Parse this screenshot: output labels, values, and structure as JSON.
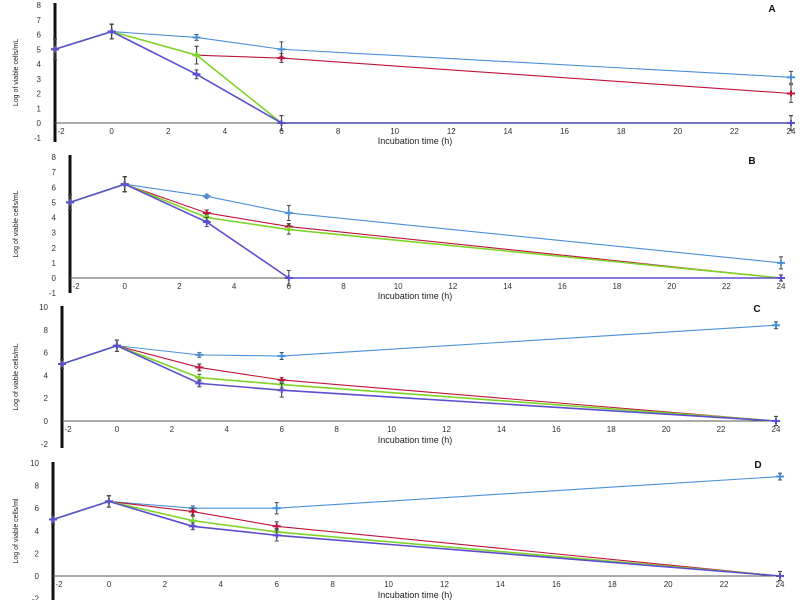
{
  "figure": {
    "series_colors": {
      "blue": "#4a90d9",
      "red": "#c0143c",
      "green": "#7fd42a",
      "purple": "#5b4fd0"
    }
  },
  "chart_data": [
    {
      "type": "line",
      "panel_label": "A",
      "xlabel": "Incubation time (h)",
      "ylabel": "Log of viable cells/mL",
      "xlim": [
        -2,
        24
      ],
      "ylim": [
        -1,
        8
      ],
      "xticks": [
        -2,
        0,
        2,
        4,
        6,
        8,
        10,
        12,
        14,
        16,
        18,
        20,
        22,
        24
      ],
      "yticks": [
        -1,
        0,
        1,
        2,
        3,
        4,
        5,
        6,
        7,
        8
      ],
      "grid": false,
      "series": [
        {
          "name": "blue",
          "x": [
            -2,
            0,
            3,
            6,
            24
          ],
          "y": [
            5.0,
            6.2,
            5.8,
            5.0,
            3.1
          ],
          "err": [
            0.7,
            0.5,
            0.2,
            0.5,
            0.4
          ]
        },
        {
          "name": "red",
          "x": [
            -2,
            0,
            3,
            6,
            24
          ],
          "y": [
            5.0,
            6.2,
            4.6,
            4.4,
            2.0
          ],
          "err": [
            0.7,
            0.5,
            0.6,
            0.3,
            0.6
          ]
        },
        {
          "name": "green",
          "x": [
            -2,
            0,
            3,
            6,
            24
          ],
          "y": [
            5.0,
            6.2,
            4.6,
            0.0,
            0.0
          ],
          "err": [
            0.7,
            0.5,
            0.6,
            0.5,
            0.5
          ]
        },
        {
          "name": "purple",
          "x": [
            -2,
            0,
            3,
            6,
            24
          ],
          "y": [
            5.0,
            6.2,
            3.3,
            0.0,
            0.0
          ],
          "err": [
            0.7,
            0.5,
            0.3,
            0.5,
            0.5
          ]
        }
      ]
    },
    {
      "type": "line",
      "panel_label": "B",
      "xlabel": "Incubation time (h)",
      "ylabel": "Log of viable cells/mL",
      "xlim": [
        -2,
        24
      ],
      "ylim": [
        -1,
        8
      ],
      "xticks": [
        -2,
        0,
        2,
        4,
        6,
        8,
        10,
        12,
        14,
        16,
        18,
        20,
        22,
        24
      ],
      "yticks": [
        -1,
        0,
        1,
        2,
        3,
        4,
        5,
        6,
        7,
        8
      ],
      "grid": false,
      "series": [
        {
          "name": "blue",
          "x": [
            -2,
            0,
            3,
            6,
            24
          ],
          "y": [
            5.0,
            6.2,
            5.4,
            4.3,
            1.0
          ],
          "err": [
            0.5,
            0.5,
            0.1,
            0.5,
            0.4
          ]
        },
        {
          "name": "red",
          "x": [
            -2,
            0,
            3,
            6,
            24
          ],
          "y": [
            5.0,
            6.2,
            4.3,
            3.4,
            0.0
          ],
          "err": [
            0.5,
            0.5,
            0.2,
            0.2,
            0.2
          ]
        },
        {
          "name": "green",
          "x": [
            -2,
            0,
            3,
            6,
            24
          ],
          "y": [
            5.0,
            6.2,
            4.0,
            3.2,
            0.0
          ],
          "err": [
            0.5,
            0.5,
            0.2,
            0.3,
            0.2
          ]
        },
        {
          "name": "purple",
          "x": [
            -2,
            0,
            3,
            6,
            24
          ],
          "y": [
            5.0,
            6.2,
            3.7,
            0.0,
            0.0
          ],
          "err": [
            0.5,
            0.5,
            0.3,
            0.5,
            0.2
          ]
        }
      ]
    },
    {
      "type": "line",
      "panel_label": "C",
      "xlabel": "Incubation time (h)",
      "ylabel": "Log of viable cells/mL",
      "xlim": [
        -2,
        24
      ],
      "ylim": [
        -2,
        10
      ],
      "xticks": [
        -2,
        0,
        2,
        4,
        6,
        8,
        10,
        12,
        14,
        16,
        18,
        20,
        22,
        24
      ],
      "yticks": [
        -2,
        0,
        2,
        4,
        6,
        8,
        10
      ],
      "grid": false,
      "series": [
        {
          "name": "blue",
          "x": [
            -2,
            0,
            3,
            6,
            24
          ],
          "y": [
            5.0,
            6.6,
            5.8,
            5.7,
            8.4
          ],
          "err": [
            0.4,
            0.5,
            0.2,
            0.3,
            0.3
          ]
        },
        {
          "name": "red",
          "x": [
            -2,
            0,
            3,
            6,
            24
          ],
          "y": [
            5.0,
            6.6,
            4.7,
            3.6,
            0.0
          ],
          "err": [
            0.4,
            0.5,
            0.3,
            0.2,
            0.4
          ]
        },
        {
          "name": "green",
          "x": [
            -2,
            0,
            3,
            6,
            24
          ],
          "y": [
            5.0,
            6.6,
            3.8,
            3.2,
            0.0
          ],
          "err": [
            0.4,
            0.5,
            0.3,
            0.3,
            0.4
          ]
        },
        {
          "name": "purple",
          "x": [
            -2,
            0,
            3,
            6,
            24
          ],
          "y": [
            5.0,
            6.6,
            3.3,
            2.7,
            0.0
          ],
          "err": [
            0.4,
            0.5,
            0.3,
            0.6,
            0.4
          ]
        }
      ]
    },
    {
      "type": "line",
      "panel_label": "D",
      "xlabel": "Incubation time (h)",
      "ylabel": "Log of viable cells/ml",
      "xlim": [
        -2,
        24
      ],
      "ylim": [
        -2,
        10
      ],
      "xticks": [
        -2,
        0,
        2,
        4,
        6,
        8,
        10,
        12,
        14,
        16,
        18,
        20,
        22,
        24
      ],
      "yticks": [
        -2,
        0,
        2,
        4,
        6,
        8,
        10
      ],
      "grid": false,
      "series": [
        {
          "name": "blue",
          "x": [
            -2,
            0,
            3,
            6,
            24
          ],
          "y": [
            5.0,
            6.6,
            6.0,
            6.0,
            8.8
          ],
          "err": [
            0.4,
            0.5,
            0.2,
            0.5,
            0.3
          ]
        },
        {
          "name": "red",
          "x": [
            -2,
            0,
            3,
            6,
            24
          ],
          "y": [
            5.0,
            6.6,
            5.7,
            4.4,
            0.0
          ],
          "err": [
            0.4,
            0.5,
            0.3,
            0.4,
            0.4
          ]
        },
        {
          "name": "green",
          "x": [
            -2,
            0,
            3,
            6,
            24
          ],
          "y": [
            5.0,
            6.6,
            4.9,
            3.9,
            0.0
          ],
          "err": [
            0.4,
            0.5,
            0.4,
            0.3,
            0.4
          ]
        },
        {
          "name": "purple",
          "x": [
            -2,
            0,
            3,
            6,
            24
          ],
          "y": [
            5.0,
            6.6,
            4.4,
            3.6,
            0.0
          ],
          "err": [
            0.4,
            0.5,
            0.3,
            0.5,
            0.4
          ]
        }
      ]
    }
  ]
}
